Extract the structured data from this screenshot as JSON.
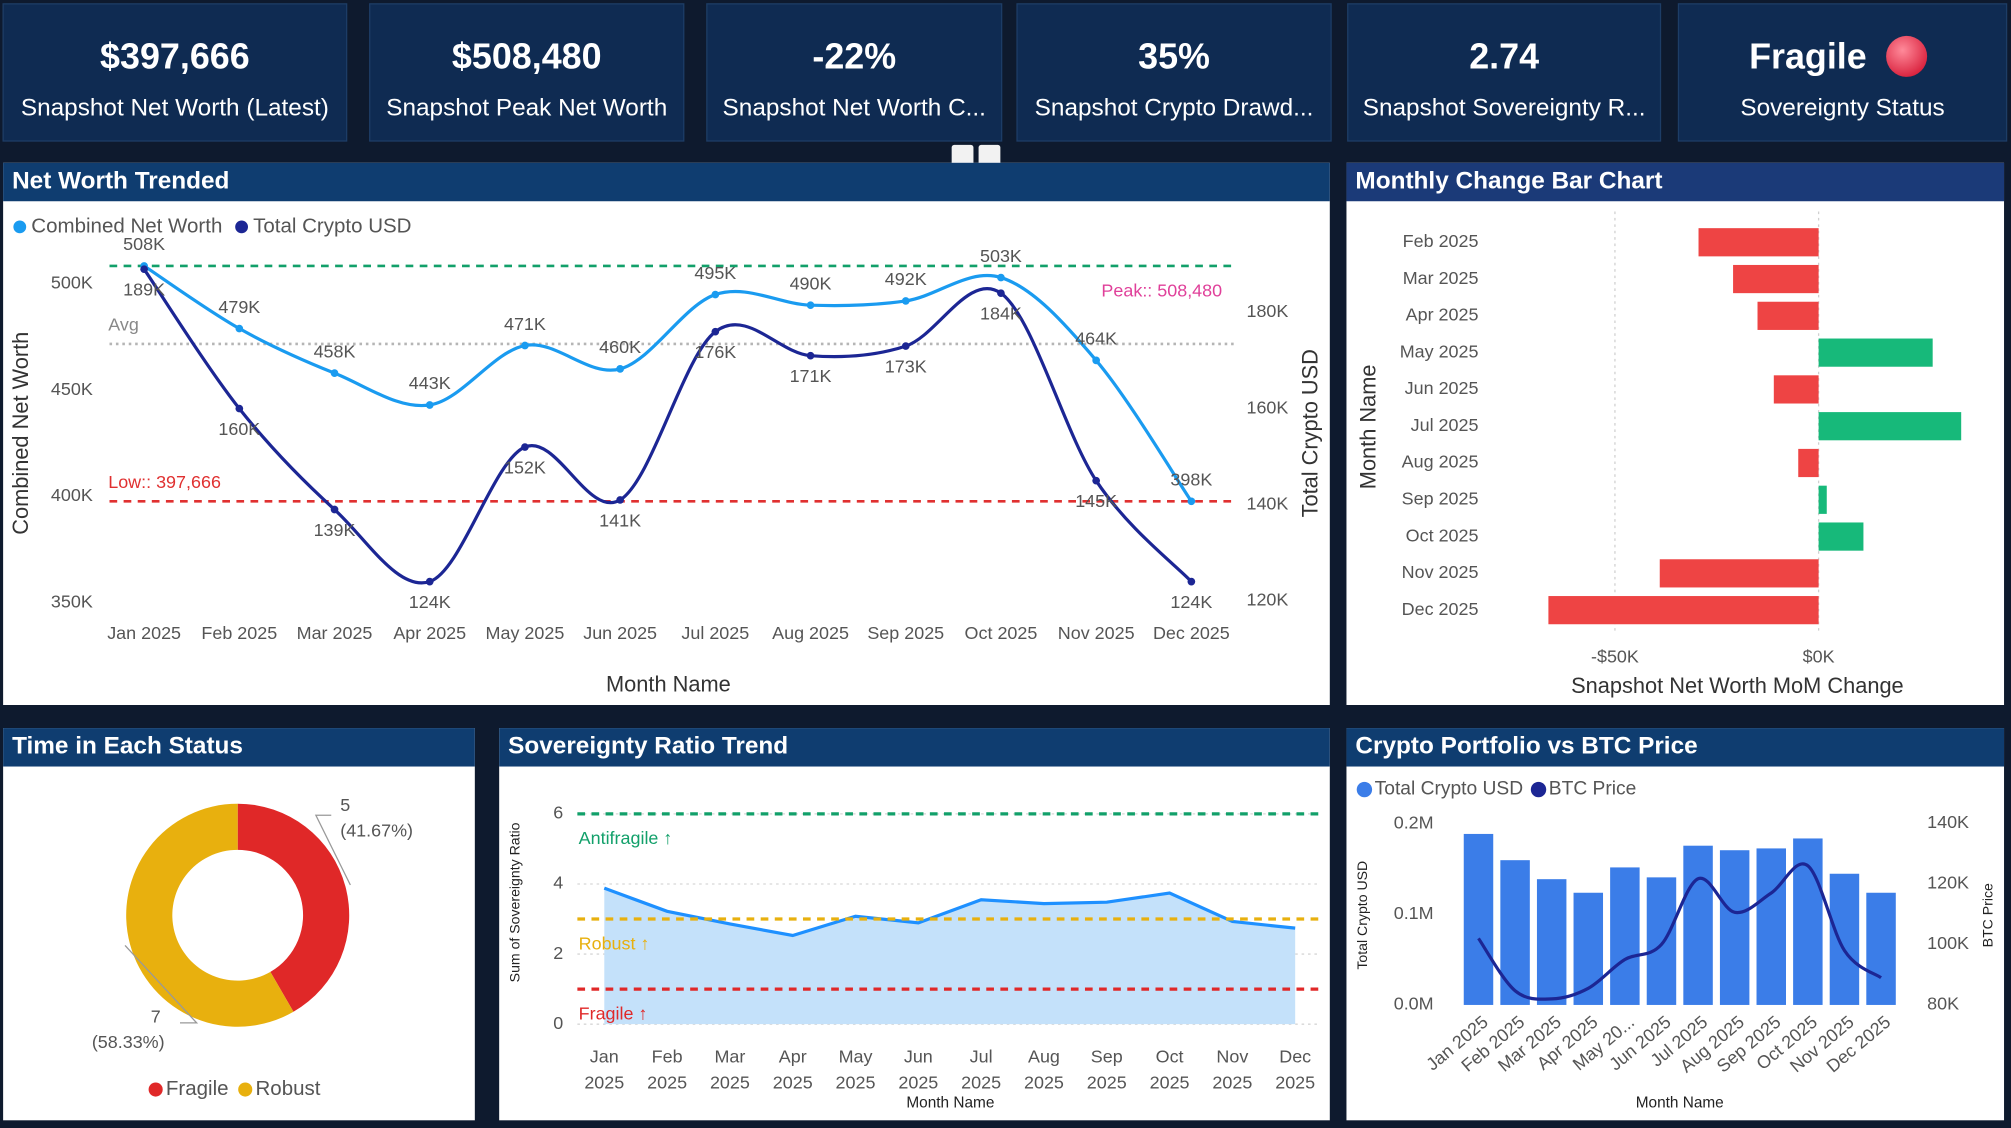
{
  "kpis": [
    {
      "value": "$397,666",
      "label": "Snapshot Net Worth (Latest)"
    },
    {
      "value": "$508,480",
      "label": "Snapshot Peak Net Worth"
    },
    {
      "value": "-22%",
      "label": "Snapshot Net Worth C..."
    },
    {
      "value": "35%",
      "label": "Snapshot Crypto Drawd..."
    },
    {
      "value": "2.74",
      "label": "Snapshot Sovereignty R..."
    },
    {
      "value": "Fragile",
      "label": "Sovereignty Status"
    }
  ],
  "chart_data": [
    {
      "type": "line",
      "title": "Net Worth Trended",
      "x_label": "Month Name",
      "y_label": "Combined Net Worth",
      "y2_label": "Total Crypto USD",
      "categories": [
        "Jan 2025",
        "Feb 2025",
        "Mar 2025",
        "Apr 2025",
        "May 2025",
        "Jun 2025",
        "Jul 2025",
        "Aug 2025",
        "Sep 2025",
        "Oct 2025",
        "Nov 2025",
        "Dec 2025"
      ],
      "series": [
        {
          "name": "Combined Net Worth",
          "color": "#1a9bf0",
          "values": [
            508480,
            479000,
            458000,
            443000,
            471000,
            460000,
            495000,
            490000,
            492000,
            503000,
            464000,
            397666
          ],
          "value_labels": [
            "508K",
            "479K",
            "458K",
            "443K",
            "471K",
            "460K",
            "495K",
            "490K",
            "492K",
            "503K",
            "464K",
            "398K"
          ]
        },
        {
          "name": "Total Crypto USD",
          "color": "#1c2694",
          "axis": "y2",
          "values": [
            189000,
            160000,
            139000,
            124000,
            152000,
            141000,
            176000,
            171000,
            173000,
            184000,
            145000,
            124000
          ],
          "value_labels": [
            "189K",
            "160K",
            "139K",
            "124K",
            "152K",
            "141K",
            "176K",
            "171K",
            "173K",
            "184K",
            "145K",
            "124K"
          ]
        }
      ],
      "ylim": [
        344000,
        516000
      ],
      "yticks": [
        {
          "value": 350000,
          "label": "350K"
        },
        {
          "value": 400000,
          "label": "400K"
        },
        {
          "value": 450000,
          "label": "450K"
        },
        {
          "value": 500000,
          "label": "500K"
        }
      ],
      "y2lim": [
        117000,
        193000
      ],
      "y2ticks": [
        {
          "value": 120000,
          "label": "120K"
        },
        {
          "value": 140000,
          "label": "140K"
        },
        {
          "value": 160000,
          "label": "160K"
        },
        {
          "value": 180000,
          "label": "180K"
        }
      ],
      "reference_lines": [
        {
          "label": "Peak:: 508,480",
          "value": 508480,
          "color": "#12a06a",
          "label_color": "#e0409a"
        },
        {
          "label": "Avg",
          "value": 471760,
          "color": "#b5b5b5",
          "label_color": "#888888"
        },
        {
          "label": "Low:: 397,666",
          "value": 397666,
          "color": "#e03030",
          "label_color": "#e03030"
        }
      ],
      "legend": "top-left"
    },
    {
      "type": "hbar",
      "title": "Monthly Change Bar Chart",
      "x_label": "Snapshot Net Worth MoM Change",
      "y_label": "Month Name",
      "categories": [
        "Feb 2025",
        "Mar 2025",
        "Apr 2025",
        "May 2025",
        "Jun 2025",
        "Jul 2025",
        "Aug 2025",
        "Sep 2025",
        "Oct 2025",
        "Nov 2025",
        "Dec 2025"
      ],
      "values": [
        -29480,
        -21000,
        -15000,
        28000,
        -11000,
        35000,
        -5000,
        2000,
        11000,
        -39000,
        -66334
      ],
      "positive_color": "#17b97a",
      "negative_color": "#ee4444",
      "xlim": [
        -75000,
        43000
      ],
      "xticks": [
        {
          "value": -50000,
          "label": "-$50K"
        },
        {
          "value": 0,
          "label": "$0K"
        }
      ],
      "grid": true
    },
    {
      "type": "donut",
      "title": "Time in Each Status",
      "categories": [
        "Fragile",
        "Robust"
      ],
      "values": [
        5,
        7
      ],
      "percent_labels": [
        "(41.67%)",
        "(58.33%)"
      ],
      "colors": [
        "#e02828",
        "#e8b00e"
      ],
      "legend": "bottom"
    },
    {
      "type": "area",
      "title": "Sovereignty Ratio Trend",
      "x_label": "Month Name",
      "y_label": "Sum of Sovereignty Ratio",
      "categories": [
        "Jan 2025",
        "Feb 2025",
        "Mar 2025",
        "Apr 2025",
        "May 2025",
        "Jun 2025",
        "Jul 2025",
        "Aug 2025",
        "Sep 2025",
        "Oct 2025",
        "Nov 2025",
        "Dec 2025"
      ],
      "values": [
        3.88,
        3.22,
        2.86,
        2.53,
        3.08,
        2.89,
        3.55,
        3.44,
        3.48,
        3.74,
        2.93,
        2.74
      ],
      "color": "#1e90ff",
      "fill": "#c4e1fa",
      "ylim": [
        0,
        6.4
      ],
      "yticks": [
        0,
        2,
        4,
        6
      ],
      "grid": true,
      "thresholds": [
        {
          "label": "Antifragile ↑",
          "value": 6,
          "color": "#12a06a"
        },
        {
          "label": "Robust ↑",
          "value": 3,
          "color": "#e8b00e"
        },
        {
          "label": "Fragile ↑",
          "value": 1,
          "color": "#e02828"
        }
      ]
    },
    {
      "type": "combo",
      "title": "Crypto Portfolio vs BTC Price",
      "x_label": "Month Name",
      "y_label": "Total Crypto USD",
      "y2_label": "BTC Price",
      "categories": [
        "Jan 2025",
        "Feb 2025",
        "Mar 2025",
        "Apr 2025",
        "May 20...",
        "Jun 2025",
        "Jul 2025",
        "Aug 2025",
        "Sep 2025",
        "Oct 2025",
        "Nov 2025",
        "Dec 2025"
      ],
      "series": [
        {
          "name": "Total Crypto USD",
          "type": "bar",
          "color": "#3b7de8",
          "values": [
            189000,
            160000,
            139000,
            124000,
            152000,
            141000,
            176000,
            171000,
            173000,
            184000,
            145000,
            124000
          ]
        },
        {
          "name": "BTC Price",
          "type": "line",
          "color": "#1c2694",
          "axis": "y2",
          "values": [
            102000,
            84700,
            82000,
            85500,
            95000,
            100000,
            121700,
            110600,
            117000,
            126000,
            98000,
            89000
          ]
        }
      ],
      "ylim": [
        0,
        204000
      ],
      "yticks": [
        {
          "value": 0,
          "label": "0.0M"
        },
        {
          "value": 100000,
          "label": "0.1M"
        },
        {
          "value": 200000,
          "label": "0.2M"
        }
      ],
      "y2lim": [
        80000,
        141000
      ],
      "y2ticks": [
        {
          "value": 80000,
          "label": "80K"
        },
        {
          "value": 100000,
          "label": "100K"
        },
        {
          "value": 120000,
          "label": "120K"
        },
        {
          "value": 140000,
          "label": "140K"
        }
      ],
      "legend": "top-left"
    }
  ]
}
